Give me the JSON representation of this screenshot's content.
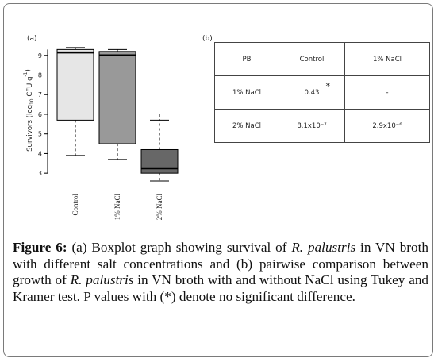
{
  "figure": {
    "panel_a_label": "(a)",
    "panel_b_label": "(b)",
    "caption": {
      "label": "Figure 6:",
      "text_1": " (a) Boxplot graph showing survival of ",
      "species_1": "R. palustris",
      "text_2": " in VN broth with different salt concentrations and (b) pairwise comparison between growth of ",
      "species_2": "R. palustris",
      "text_3": " in VN broth with and without NaCl using Tukey and Kramer test. P values with (*) denote no significant difference."
    }
  },
  "table": {
    "header": [
      "PB",
      "Control",
      "1% NaCl"
    ],
    "rows": [
      {
        "label": "1% NaCl",
        "control": "0.43",
        "control_mark": "*",
        "nacl1": "-"
      },
      {
        "label": "2% NaCl",
        "control": "8.1x10⁻⁷",
        "control_mark": "",
        "nacl1": "2.9x10⁻⁶"
      }
    ]
  },
  "chart_data": {
    "type": "boxplot",
    "title": "",
    "ylabel_prefix": "Survivors (log",
    "ylabel_sub": "10",
    "ylabel_mid": " CFU g",
    "ylabel_sup": "-1",
    "ylabel_suffix": ")",
    "ylim": [
      2.4,
      9.8
    ],
    "yticks": [
      3,
      4,
      5,
      6,
      7,
      8,
      9
    ],
    "categories": [
      "Control",
      "1% NaCl",
      "2% NaCl"
    ],
    "boxes": [
      {
        "name": "Control",
        "whisker_low": 3.9,
        "q1": 5.7,
        "median": 9.15,
        "q3": 9.3,
        "whisker_high": 9.4,
        "fill": "#e6e6e6"
      },
      {
        "name": "1% NaCl",
        "whisker_low": 3.7,
        "q1": 4.5,
        "median": 9.0,
        "q3": 9.2,
        "whisker_high": 9.3,
        "fill": "#999999"
      },
      {
        "name": "2% NaCl",
        "whisker_low": 2.6,
        "q1": 3.0,
        "median": 3.25,
        "q3": 4.2,
        "whisker_high": 5.7,
        "fill": "#676767"
      }
    ],
    "outliers": [
      {
        "category": "2% NaCl",
        "value": 6.0
      }
    ],
    "grid": false,
    "colors": {
      "axis": "#000000",
      "text": "#222222"
    }
  }
}
